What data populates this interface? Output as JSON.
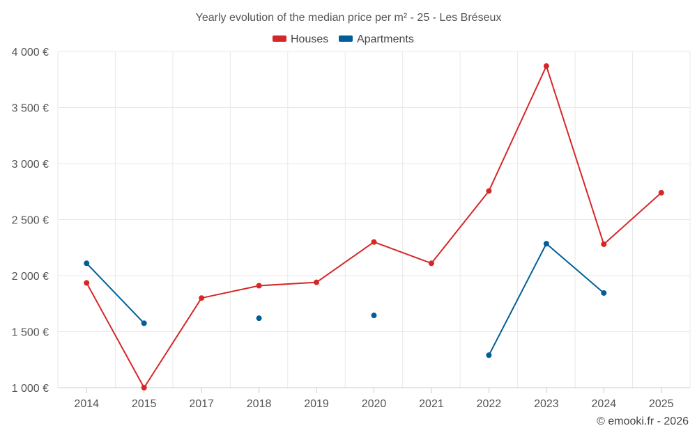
{
  "chart_data": {
    "type": "line",
    "title": "Yearly evolution of the median price per m² - 25 - Les Bréseux",
    "categories": [
      "2014",
      "2015",
      "2017",
      "2018",
      "2019",
      "2020",
      "2021",
      "2022",
      "2023",
      "2024",
      "2025"
    ],
    "series": [
      {
        "name": "Houses",
        "color": "#d62728",
        "values": [
          1935,
          1000,
          1800,
          1910,
          1940,
          2300,
          2110,
          2755,
          3870,
          2280,
          2740
        ]
      },
      {
        "name": "Apartments",
        "color": "#005f99",
        "values": [
          2110,
          1575,
          null,
          1620,
          null,
          1645,
          null,
          1290,
          2285,
          1845,
          null
        ]
      }
    ],
    "ylim": [
      1000,
      4000
    ],
    "yticks": [
      1000,
      1500,
      2000,
      2500,
      3000,
      3500,
      4000
    ],
    "ytick_labels": [
      "1 000 €",
      "1 500 €",
      "2 000 €",
      "2 500 €",
      "3 000 €",
      "3 500 €",
      "4 000 €"
    ],
    "grid": true,
    "legend": "top-center",
    "xlabel": "",
    "ylabel": ""
  },
  "credit": "© emooki.fr - 2026"
}
